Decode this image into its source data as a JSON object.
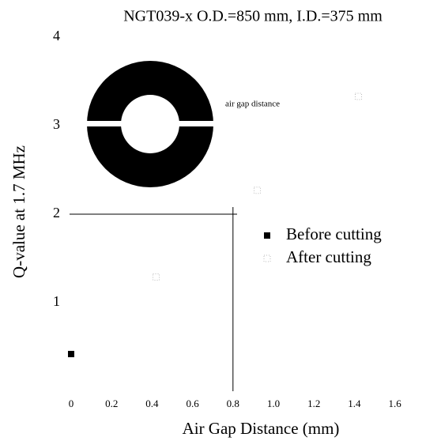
{
  "chart_data": {
    "type": "scatter",
    "title": "NGT039-x O.D.=850 mm, I.D.=375 mm",
    "x_label": "Air Gap Distance (mm)",
    "y_label": "Q-value at 1.7 MHz",
    "annotation": "air gap distance",
    "series": [
      {
        "name": "Before cutting",
        "color": "#000000",
        "x": [
          0
        ],
        "values": [
          0.42
        ]
      },
      {
        "name": "After cutting",
        "color": "#bbbbbb",
        "x": [
          0.42,
          0.92,
          1.42
        ],
        "values": [
          1.29,
          2.27,
          3.33
        ]
      }
    ],
    "reference_lines": [
      {
        "axis": "y",
        "value": 2
      },
      {
        "axis": "x",
        "value": 0.8
      }
    ],
    "xlim": [
      -0.05,
      1.75
    ],
    "ylim": [
      0,
      4
    ],
    "xticks": [
      0,
      0.2,
      0.4,
      0.6,
      0.8,
      {
        "value": 1,
        "label": "1.0"
      },
      1.2,
      1.4,
      1.6
    ],
    "yticks": [
      1,
      2,
      3,
      4
    ],
    "grid": false,
    "legend": "center-right"
  }
}
